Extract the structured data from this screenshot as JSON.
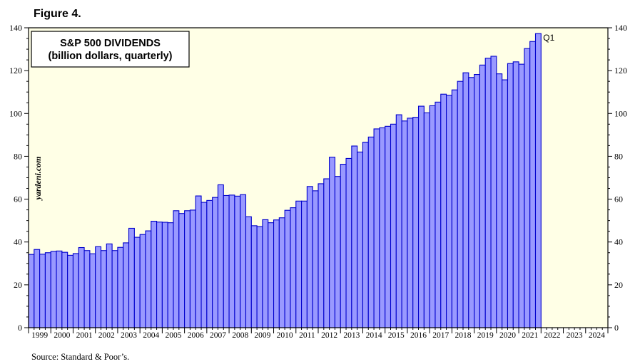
{
  "figure_label": "Figure 4.",
  "source": "Source: Standard & Poor’s.",
  "watermark": "yardeni.com",
  "colors": {
    "plot_background": "#FFFFE6",
    "bar_fill": "#9999FF",
    "bar_stroke": "#0000CC"
  },
  "chart_data": {
    "type": "bar",
    "title": "S&P 500 DIVIDENDS",
    "subtitle": "(billion dollars, quarterly)",
    "annotation": "Q1",
    "xlabel": "",
    "ylabel": "",
    "ylim": [
      0,
      140
    ],
    "yticks": [
      0,
      20,
      40,
      60,
      80,
      100,
      120,
      140
    ],
    "y_axis_both_sides": true,
    "grid": false,
    "x_range_quarters": {
      "start": "1999Q1",
      "end": "2024Q4"
    },
    "year_labels": [
      "1999",
      "2000",
      "2001",
      "2002",
      "2003",
      "2004",
      "2005",
      "2006",
      "2007",
      "2008",
      "2009",
      "2010",
      "2011",
      "2012",
      "2013",
      "2014",
      "2015",
      "2016",
      "2017",
      "2018",
      "2019",
      "2020",
      "2021",
      "2022",
      "2023",
      "2024"
    ],
    "series": [
      {
        "start_quarter": "1998Q4",
        "end_quarter": "2022Q1",
        "values": [
          32.8,
          34.2,
          36.5,
          34.3,
          35.0,
          35.6,
          35.8,
          35.2,
          33.8,
          34.6,
          37.4,
          36.0,
          34.5,
          37.8,
          36.0,
          39.1,
          36.0,
          37.5,
          39.6,
          46.4,
          42.2,
          43.5,
          45.2,
          49.7,
          49.3,
          49.2,
          49.0,
          54.6,
          53.3,
          54.6,
          54.9,
          61.5,
          58.5,
          59.4,
          60.8,
          66.7,
          61.7,
          61.9,
          61.4,
          62.1,
          51.8,
          47.6,
          47.2,
          50.4,
          49.0,
          50.3,
          51.3,
          54.8,
          56.0,
          59.1,
          59.1,
          65.9,
          63.9,
          67.2,
          69.5,
          79.6,
          70.6,
          76.3,
          79.0,
          84.8,
          82.0,
          86.6,
          89.0,
          92.8,
          93.3,
          94.0,
          95.0,
          99.4,
          96.5,
          97.8,
          98.2,
          103.4,
          100.3,
          103.6,
          105.3,
          109.0,
          108.5,
          111.0,
          115.0,
          119.0,
          116.8,
          118.2,
          122.6,
          125.8,
          126.7,
          118.5,
          115.7,
          123.3,
          124.1,
          123.0,
          130.3,
          133.6,
          137.3
        ]
      }
    ]
  }
}
